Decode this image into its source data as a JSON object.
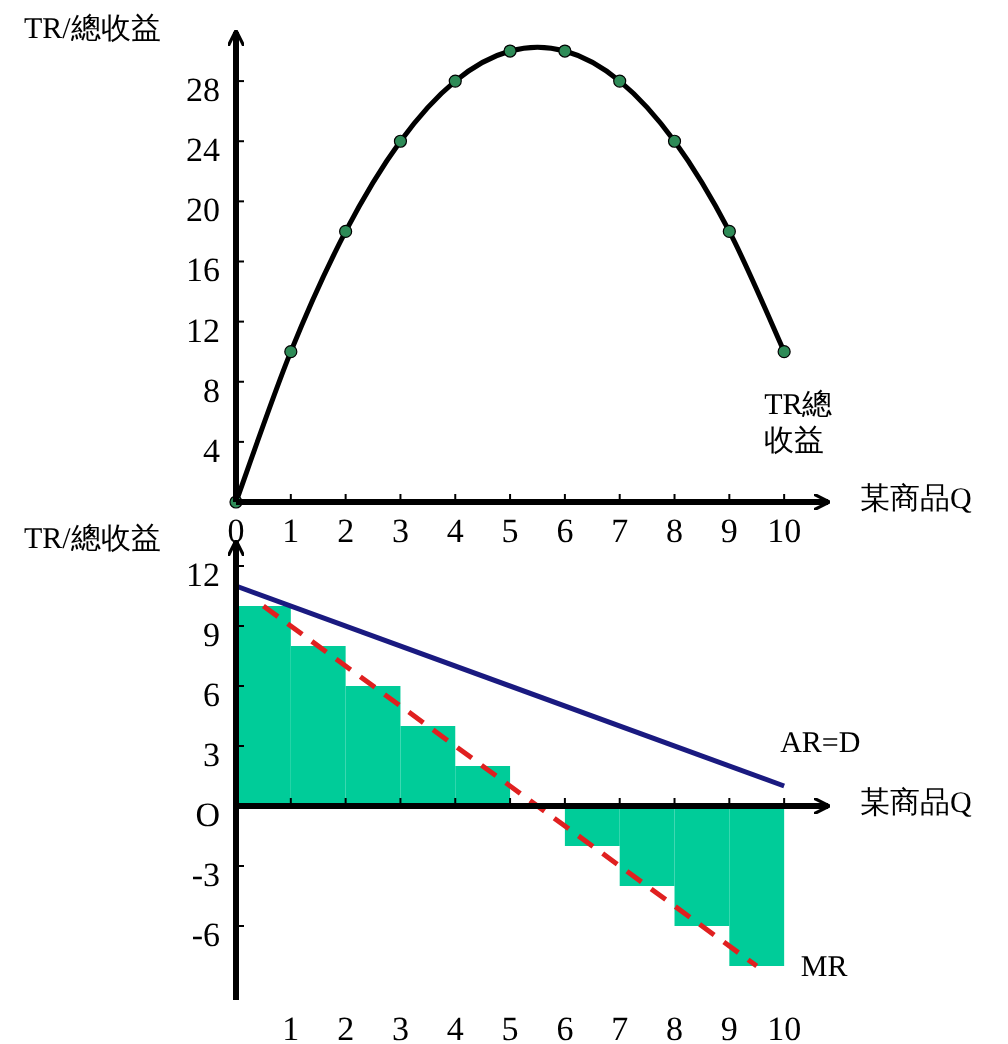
{
  "chart_data": [
    {
      "type": "line",
      "ylabel": "TR/總收益",
      "xlabel": "某商品Q",
      "x": [
        0,
        1,
        2,
        3,
        4,
        5,
        6,
        7,
        8,
        9,
        10
      ],
      "marker": "circle",
      "xlim": [
        0,
        10.8
      ],
      "ylim": [
        0,
        31
      ],
      "xticks": [
        0,
        1,
        2,
        3,
        4,
        5,
        6,
        7,
        8,
        9,
        10
      ],
      "yticks": [
        4,
        8,
        12,
        16,
        20,
        24,
        28
      ],
      "series": [
        {
          "name": "TR總收益",
          "color": "#000000",
          "values": [
            0,
            10,
            18,
            24,
            28,
            30,
            30,
            28,
            24,
            18,
            10
          ]
        }
      ]
    },
    {
      "type": "bar",
      "ylabel": "TR/總收益",
      "xlabel": "某商品Q",
      "xlim": [
        0,
        10.8
      ],
      "ylim": [
        -9.5,
        13
      ],
      "xticks": [
        1,
        2,
        3,
        4,
        5,
        6,
        7,
        8,
        9,
        10
      ],
      "yticks": [
        -6,
        -3,
        {
          "value": 0,
          "label": "O"
        },
        3,
        6,
        9,
        12
      ],
      "series": [
        {
          "type": "bar",
          "color": "#00cc99",
          "x": [
            0.5,
            1.5,
            2.5,
            3.5,
            4.5,
            5.5,
            6.5,
            7.5,
            8.5,
            9.5
          ],
          "values": [
            10,
            8,
            6,
            4,
            2,
            0,
            -2,
            -4,
            -6,
            -8
          ]
        },
        {
          "type": "line",
          "name": "AR=D",
          "color": "#1a1a80",
          "x": [
            0,
            10
          ],
          "values": [
            11,
            1
          ]
        },
        {
          "type": "line",
          "name": "MR",
          "color": "#e02020",
          "line_style": "dashed",
          "x": [
            0.5,
            9.5
          ],
          "values": [
            10,
            -8
          ]
        }
      ]
    }
  ]
}
